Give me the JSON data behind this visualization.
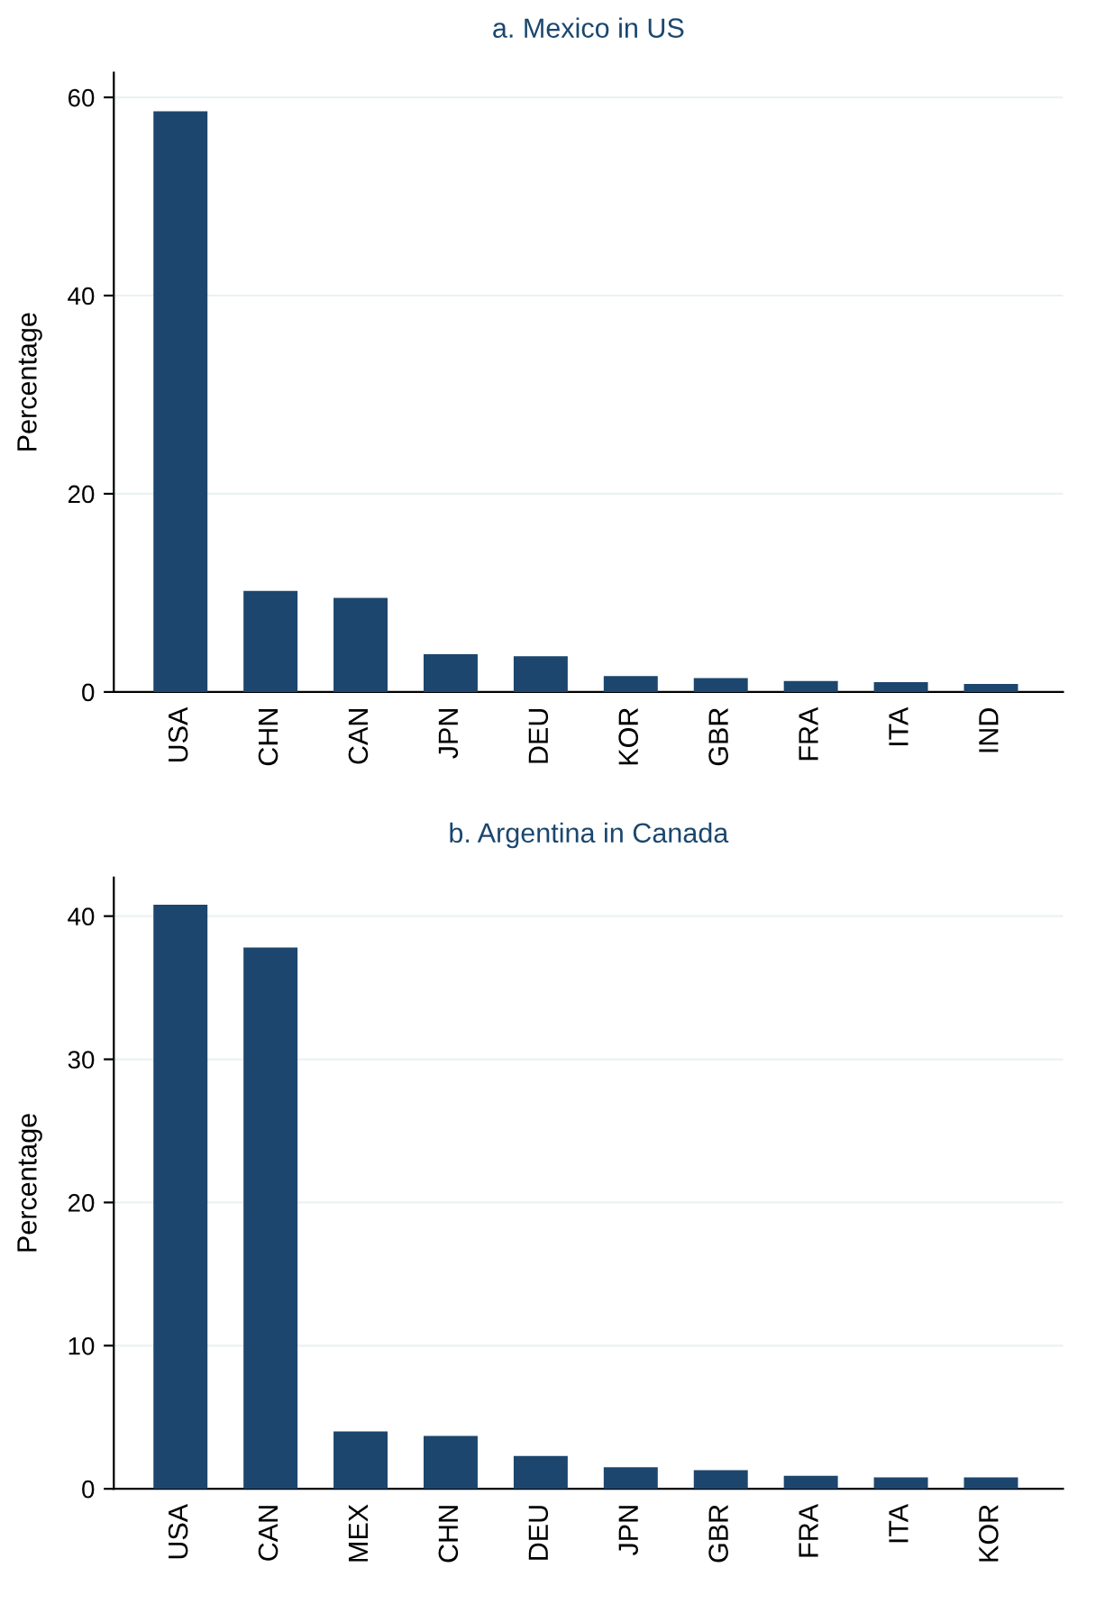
{
  "chart_data": [
    {
      "type": "bar",
      "title": "a. Mexico in US",
      "ylabel": "Percentage",
      "categories": [
        "USA",
        "CHN",
        "CAN",
        "JPN",
        "DEU",
        "KOR",
        "GBR",
        "FRA",
        "ITA",
        "IND"
      ],
      "values": [
        58.6,
        10.2,
        9.5,
        3.8,
        3.6,
        1.6,
        1.4,
        1.1,
        1.0,
        0.8
      ],
      "color": "#1c466e",
      "ylim": [
        0,
        62.5
      ],
      "yticks": [
        0,
        20,
        40,
        60
      ],
      "grid": "y"
    },
    {
      "type": "bar",
      "title": "b. Argentina in Canada",
      "ylabel": "Percentage",
      "categories": [
        "USA",
        "CAN",
        "MEX",
        "CHN",
        "DEU",
        "JPN",
        "GBR",
        "FRA",
        "ITA",
        "KOR"
      ],
      "values": [
        40.8,
        37.8,
        4.0,
        3.7,
        2.3,
        1.5,
        1.3,
        0.9,
        0.8,
        0.8
      ],
      "color": "#1c466e",
      "ylim": [
        0,
        42.7
      ],
      "yticks": [
        0,
        10,
        20,
        30,
        40
      ],
      "grid": "y"
    }
  ]
}
